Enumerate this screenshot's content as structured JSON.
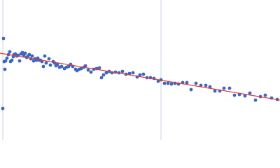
{
  "chart_data": {
    "type": "scatter",
    "x": [
      5,
      4,
      6,
      7,
      8,
      10,
      12,
      14,
      15,
      17,
      19,
      20,
      22,
      24,
      26,
      28,
      30,
      32,
      34,
      36,
      38,
      40,
      42,
      44,
      46,
      48,
      50,
      52,
      54,
      56,
      58,
      60,
      62,
      64,
      66,
      70,
      72,
      76,
      78,
      80,
      82,
      85,
      88,
      92,
      95,
      98,
      101,
      104,
      108,
      110,
      113,
      116,
      120,
      122,
      126,
      130,
      134,
      138,
      142,
      145,
      148,
      152,
      156,
      160,
      165,
      170,
      175,
      180,
      185,
      190,
      196,
      200,
      205,
      210,
      215,
      220,
      226,
      230,
      235,
      240,
      245,
      250,
      255,
      261,
      267,
      273,
      280,
      287,
      294,
      300,
      307,
      314,
      320,
      328,
      335,
      342,
      350,
      357,
      365,
      372,
      379,
      388,
      396
    ],
    "series": [
      {
        "color": "#3a68bd",
        "values": [
          145,
          45,
          112,
          101,
          113,
          117,
          122,
          126,
          112,
          114,
          119,
          122,
          123,
          120,
          121,
          113,
          123,
          125,
          121,
          124,
          118,
          120,
          122,
          116,
          120,
          113,
          116,
          114,
          117,
          114,
          114,
          112,
          105,
          120,
          110,
          116,
          107,
          112,
          110,
          106,
          108,
          104,
          105,
          102,
          104,
          105,
          108,
          105,
          101,
          99,
          101,
          102,
          104,
          106,
          100,
          97,
          101,
          102,
          103,
          89,
          93,
          96,
          98,
          96,
          97,
          96,
          98,
          94,
          95,
          96,
          90,
          93,
          94,
          89,
          89,
          88,
          84,
          86,
          81,
          81,
          80,
          81,
          80,
          82,
          82,
          72,
          81,
          78,
          78,
          76,
          70,
          70,
          74,
          74,
          64,
          65,
          63,
          67,
          57,
          62,
          64,
          60,
          58
        ]
      }
    ],
    "fit": {
      "x": [
        0,
        400
      ],
      "y": [
        124,
        57
      ],
      "color": "#e03a3a"
    },
    "vlines": [
      4,
      230
    ],
    "xlim": [
      0,
      400
    ],
    "ylim": [
      0,
      200
    ]
  }
}
